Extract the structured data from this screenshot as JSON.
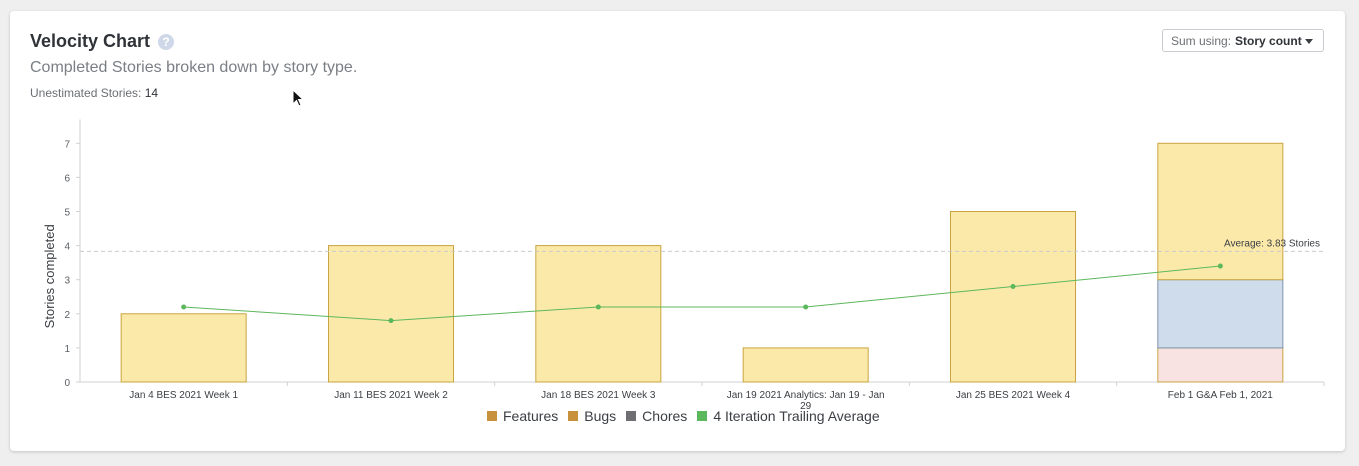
{
  "header": {
    "title": "Velocity Chart",
    "help_icon": "question-circle-icon",
    "subtitle": "Completed Stories broken down by story type.",
    "unestimated_label": "Unestimated Stories:",
    "unestimated_value": "14"
  },
  "sum_select": {
    "label": "Sum using:",
    "value": "Story count",
    "icon": "caret-down-icon"
  },
  "legend": [
    {
      "label": "Features",
      "color": "#c8913c"
    },
    {
      "label": "Bugs",
      "color": "#c8913c"
    },
    {
      "label": "Chores",
      "color": "#6e6e73"
    },
    {
      "label": "4 Iteration Trailing Average",
      "color": "#5cb85c"
    }
  ],
  "chart_data": {
    "type": "bar",
    "stacked": true,
    "ylabel": "Stories completed",
    "ylim": [
      0,
      7.7
    ],
    "yticks": [
      0,
      1,
      2,
      3,
      4,
      5,
      6,
      7
    ],
    "categories": [
      [
        "Jan 4 BES 2021 Week 1"
      ],
      [
        "Jan 11 BES 2021 Week 2"
      ],
      [
        "Jan 18 BES 2021 Week 3"
      ],
      [
        "Jan 19 2021 Analytics: Jan 19 - Jan",
        "29"
      ],
      [
        "Jan 25 BES 2021 Week 4"
      ],
      [
        "Feb 1 G&A Feb 1, 2021"
      ]
    ],
    "segments": [
      {
        "fill": "#f9ebb3",
        "stroke": "#c9a43f",
        "values": [
          0,
          0,
          0,
          0,
          0,
          1
        ]
      },
      {
        "fill": "#cfdcec",
        "stroke": "#7f93ad",
        "values": [
          0,
          0,
          0,
          0,
          0,
          2
        ]
      },
      {
        "fill": "#fbe9a9",
        "stroke": "#c9a43f",
        "values": [
          2,
          4,
          4,
          1,
          5,
          4
        ]
      }
    ],
    "segment_override": {
      "index": 0,
      "fill": "#f9e2e2",
      "stroke": "#c9a43f"
    },
    "trailing_average": [
      2.2,
      1.8,
      2.2,
      2.2,
      2.8,
      3.4
    ],
    "trailing_color": "#5cb85c",
    "average": {
      "value": 3.83,
      "label": "Average: 3.83 Stories"
    },
    "grid": false
  }
}
